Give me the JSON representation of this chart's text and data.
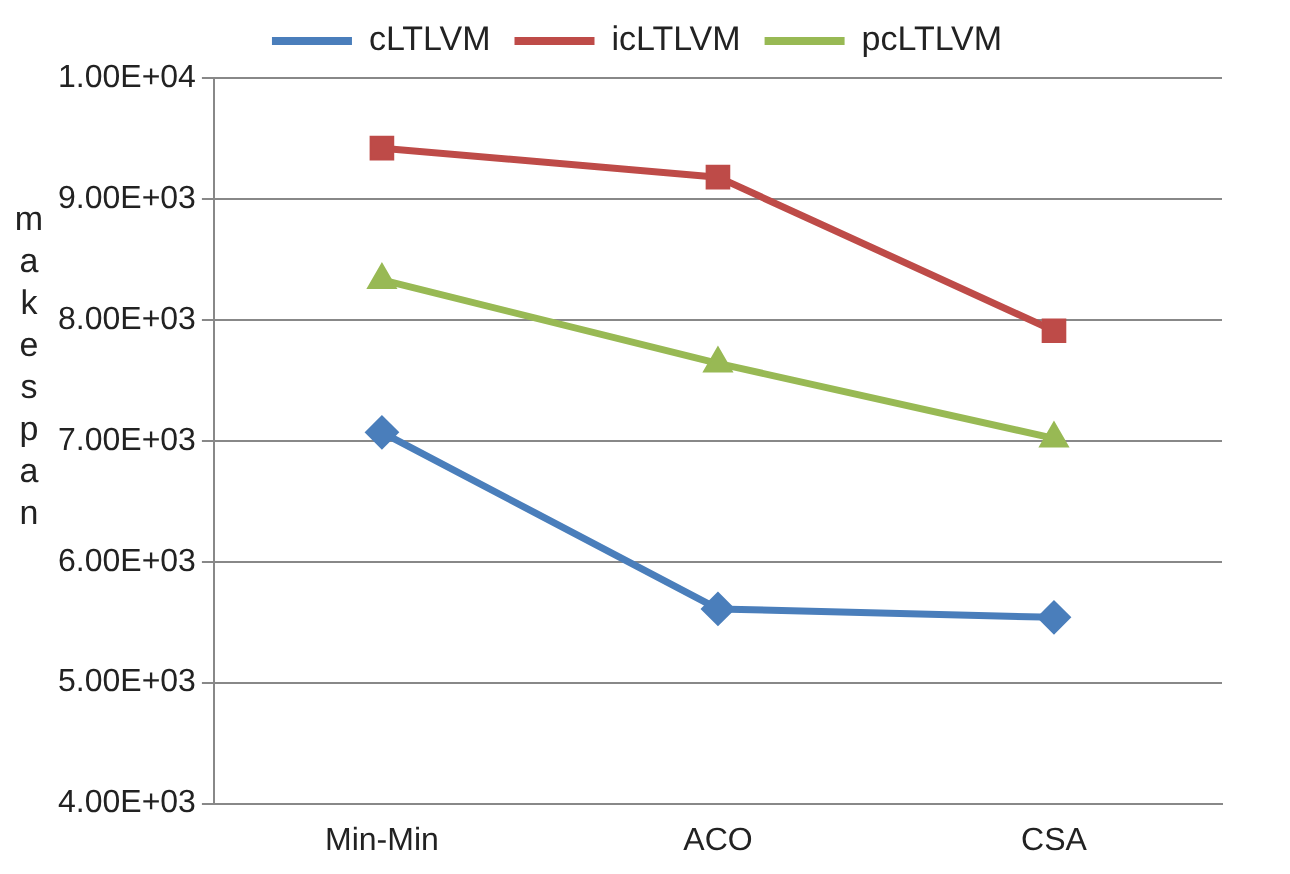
{
  "chart_data": {
    "type": "line",
    "ylabel": "makespan",
    "categories": [
      "Min-Min",
      "ACO",
      "CSA"
    ],
    "series": [
      {
        "name": "cLTLVM",
        "color": "#4a7ebb",
        "marker": "diamond",
        "values": [
          7070,
          5610,
          5540
        ]
      },
      {
        "name": "icLTLVM",
        "color": "#be4b48",
        "marker": "square",
        "values": [
          9420,
          9180,
          7910
        ]
      },
      {
        "name": "pcLTLVM",
        "color": "#98b954",
        "marker": "triangle",
        "values": [
          8330,
          7640,
          7020
        ]
      }
    ],
    "ylim": [
      4000,
      10000
    ],
    "yticks": [
      {
        "value": 4000,
        "label": "4.00E+03"
      },
      {
        "value": 5000,
        "label": "5.00E+03"
      },
      {
        "value": 6000,
        "label": "6.00E+03"
      },
      {
        "value": 7000,
        "label": "7.00E+03"
      },
      {
        "value": 8000,
        "label": "8.00E+03"
      },
      {
        "value": 9000,
        "label": "9.00E+03"
      },
      {
        "value": 10000,
        "label": "1.00E+04"
      }
    ],
    "grid": "y",
    "legend": "top",
    "line_style": "solid"
  }
}
